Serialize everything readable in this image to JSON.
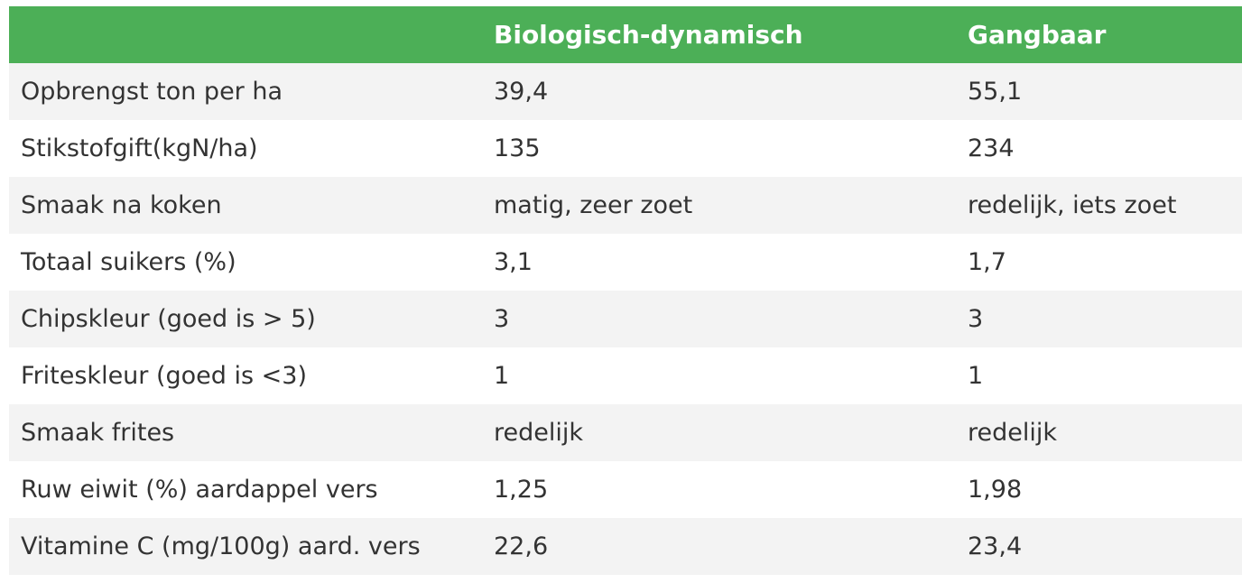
{
  "table": {
    "header": [
      "",
      "Biologisch-dynamisch",
      "Gangbaar"
    ],
    "rows": [
      [
        "Opbrengst ton per ha",
        "39,4",
        "55,1"
      ],
      [
        "Stikstofgift(kgN/ha)",
        "135",
        "234"
      ],
      [
        "Smaak na koken",
        "matig, zeer zoet",
        "redelijk, iets zoet"
      ],
      [
        "Totaal suikers (%)",
        "3,1",
        "1,7"
      ],
      [
        "Chipskleur (goed is > 5)",
        "3",
        "3"
      ],
      [
        "Friteskleur (goed is <3)",
        "1",
        "1"
      ],
      [
        "Smaak frites",
        "redelijk",
        "redelijk"
      ],
      [
        "Ruw eiwit (%) aardappel vers",
        "1,25",
        "1,98"
      ],
      [
        "Vitamine C (mg/100g) aard. vers",
        "22,6",
        "23,4"
      ]
    ]
  },
  "colors": {
    "header_bg": "#4caf57",
    "header_text": "#ffffff",
    "row_alt_bg": "#f3f3f3",
    "row_bg": "#ffffff",
    "cell_text": "#333333"
  }
}
